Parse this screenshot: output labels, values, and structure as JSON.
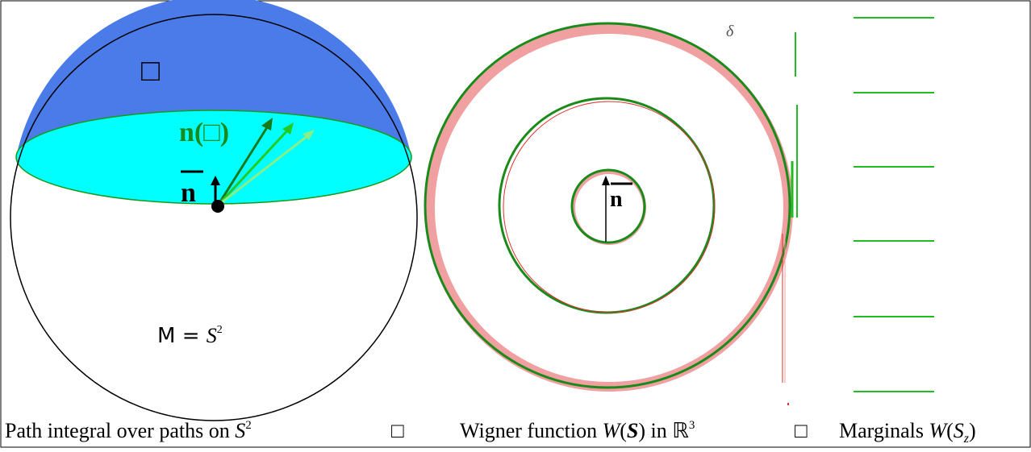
{
  "sphere": {
    "cap_label": "□",
    "vector_label": "n(□)",
    "mean_label": "n",
    "manifold_label": "M = ",
    "manifold_var": "S",
    "manifold_sup": "2"
  },
  "wigner": {
    "delta_label": "δ",
    "mean_label": "n"
  },
  "captions": {
    "left": {
      "text": "Path integral over paths on ",
      "var": "S",
      "sup": "2"
    },
    "arrow1": "□",
    "middle": {
      "text": "Wigner function ",
      "func": "W",
      "open": "(",
      "var": "S",
      "rest": ") in ℝ",
      "sup": "3"
    },
    "arrow2": "□",
    "right": {
      "text": "Marginals ",
      "func": "W",
      "open": "(",
      "var": "S",
      "sub": "z",
      "close": ")"
    }
  }
}
